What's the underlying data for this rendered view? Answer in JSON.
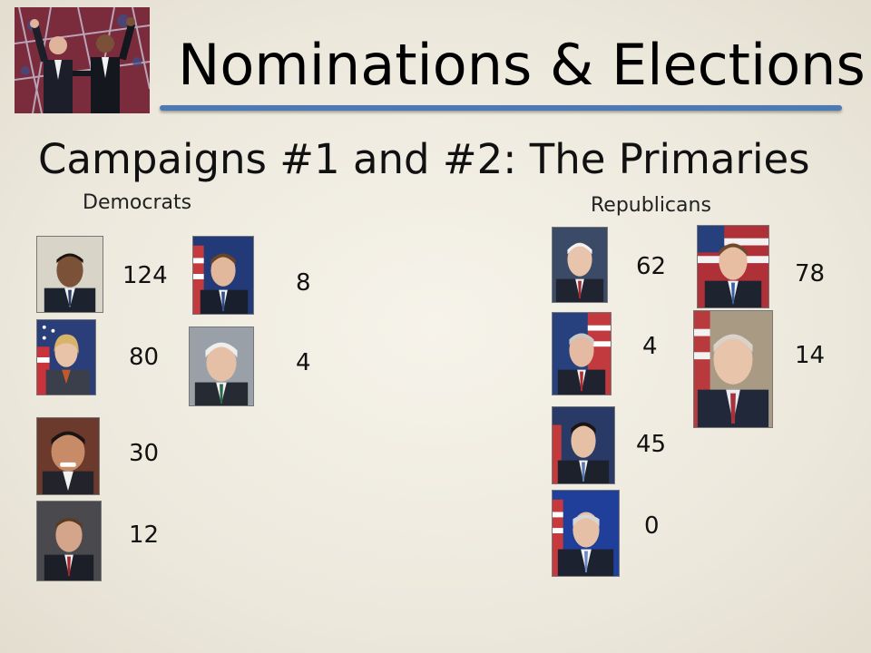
{
  "slide": {
    "title": "Nominations & Elections",
    "subtitle": "Campaigns #1 and #2: The Primaries",
    "accent_color": "#4d7ab5"
  },
  "democrats": {
    "label": "Democrats",
    "candidates": [
      {
        "count": "124"
      },
      {
        "count": "80"
      },
      {
        "count": "30"
      },
      {
        "count": "12"
      },
      {
        "count": "8"
      },
      {
        "count": "4"
      }
    ]
  },
  "republicans": {
    "label": "Republicans",
    "candidates": [
      {
        "count": "62"
      },
      {
        "count": "4"
      },
      {
        "count": "45"
      },
      {
        "count": "0"
      },
      {
        "count": "78"
      },
      {
        "count": "14"
      }
    ]
  }
}
